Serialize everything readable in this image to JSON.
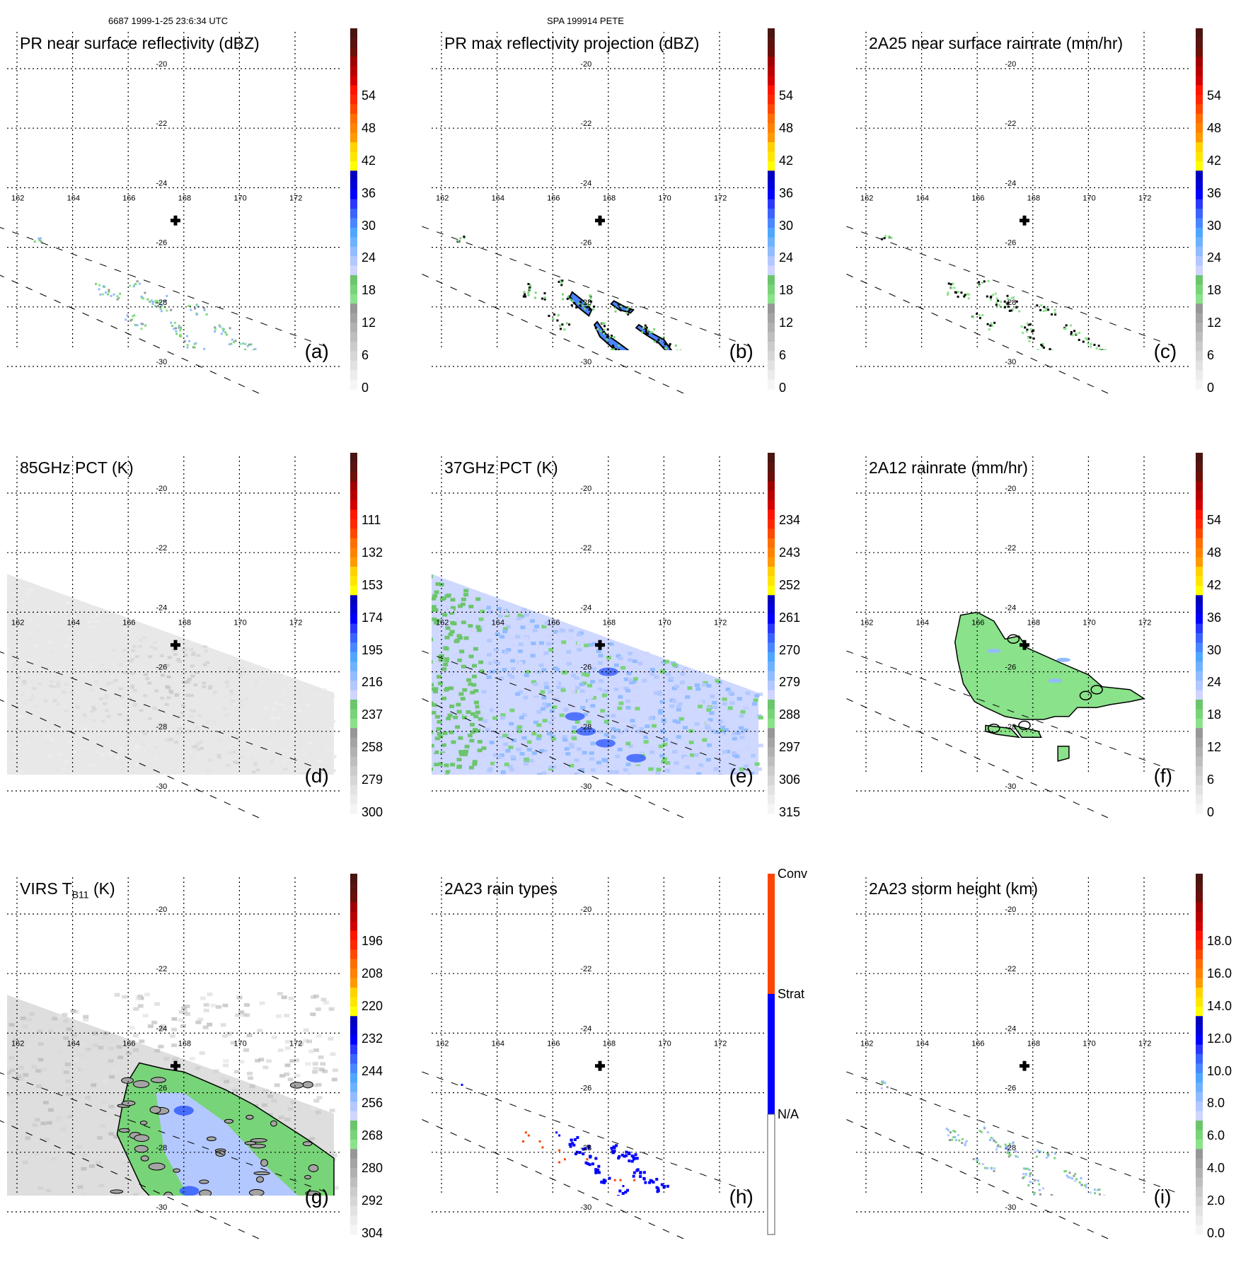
{
  "header": {
    "left": "6687 1999-1-25 23:6:34 UTC",
    "right": "SPA 199914 PETE"
  },
  "grid": {
    "lon_ticks": [
      162,
      164,
      166,
      168,
      170,
      172
    ],
    "lat_ticks": [
      -20,
      -22,
      -24,
      -26,
      -28,
      -30
    ],
    "lon_labels": [
      "162",
      "164",
      "166",
      "168",
      "170",
      "172"
    ],
    "lat_labels": [
      "-20",
      "-22",
      "-24",
      "-26",
      "-28",
      "-30"
    ],
    "lon_range": [
      161.4,
      173.4
    ],
    "lat_range": [
      -18.7,
      -31.0
    ],
    "storm_center": {
      "lon": 167.7,
      "lat": -25.1,
      "marker": "plus-cross"
    },
    "pr_swath_edges": [
      [
        [
          161.3,
          -25.3
        ],
        [
          173.3,
          -29.4
        ]
      ],
      [
        [
          161.3,
          -26.9
        ],
        [
          170.7,
          -30.9
        ]
      ]
    ],
    "tmi_swath_top_edge": [
      [
        161.3,
        -22.6
      ],
      [
        173.4,
        -26.7
      ]
    ]
  },
  "palette": {
    "standard": [
      "#f5f5f5",
      "#ececec",
      "#e2e2e2",
      "#d6d6d6",
      "#cbcbcb",
      "#bebebe",
      "#b1b1b1",
      "#a4a4a4",
      "#979797",
      "#8ae28a",
      "#78d478",
      "#6cc56c",
      "#cfd5ff",
      "#b3c8ff",
      "#92bcff",
      "#6eb2ff",
      "#4fa6ff",
      "#4a86ff",
      "#3b63ff",
      "#2a38ff",
      "#0000ff",
      "#0000d8",
      "#0000c0",
      "#ffff00",
      "#ffe600",
      "#ffd200",
      "#ff9a00",
      "#ff8200",
      "#ff6e00",
      "#ff4800",
      "#ff2800",
      "#ff1400",
      "#d20000",
      "#b80000",
      "#a00000",
      "#6a0f0a",
      "#5a1410",
      "#4a1410"
    ],
    "rain_types": {
      "conv": "#ff4500",
      "strat": "#0000ff",
      "na": "#ffffff"
    }
  },
  "panels": [
    {
      "id": "a",
      "label": "(a)",
      "title": "PR near surface reflectivity (dBZ)",
      "colorbar": {
        "type": "continuous",
        "ticks": [
          "0",
          "6",
          "12",
          "18",
          "24",
          "30",
          "36",
          "42",
          "48",
          "54"
        ],
        "min": 0,
        "max": 60,
        "bands": {
          "gray": [
            0,
            15
          ],
          "green": [
            15,
            20
          ],
          "blue": [
            20,
            35
          ],
          "warm": [
            35,
            60
          ]
        }
      },
      "field": "pr-sparse-echoes"
    },
    {
      "id": "b",
      "label": "(b)",
      "title": "PR max reflectivity projection (dBZ)",
      "colorbar": {
        "type": "continuous",
        "ticks": [
          "0",
          "6",
          "12",
          "18",
          "24",
          "30",
          "36",
          "42",
          "48",
          "54"
        ],
        "min": 0,
        "max": 60,
        "bands": {
          "gray": [
            0,
            15
          ],
          "green": [
            15,
            20
          ],
          "blue": [
            20,
            35
          ],
          "warm": [
            35,
            60
          ]
        }
      },
      "field": "pr-max-bands"
    },
    {
      "id": "c",
      "label": "(c)",
      "title": "2A25 near surface rainrate (mm/hr)",
      "colorbar": {
        "type": "continuous",
        "ticks": [
          "0",
          "6",
          "12",
          "18",
          "24",
          "30",
          "36",
          "42",
          "48",
          "54"
        ],
        "min": 0,
        "max": 60,
        "bands": {
          "green": [
            0,
            8
          ],
          "blue": [
            8,
            28
          ],
          "warm": [
            28,
            60
          ]
        }
      },
      "field": "2a25-rain"
    },
    {
      "id": "d",
      "label": "(d)",
      "title": "85GHz PCT (K)",
      "colorbar": {
        "type": "continuous",
        "ticks": [
          "300",
          "279",
          "258",
          "237",
          "216",
          "195",
          "174",
          "153",
          "132",
          "111"
        ],
        "min": 300,
        "max": 90,
        "bands": {
          "gray": [
            300,
            245
          ],
          "green": [
            245,
            227
          ],
          "blue": [
            227,
            173
          ],
          "warm": [
            173,
            90
          ]
        }
      },
      "field": "tmi-85-gray"
    },
    {
      "id": "e",
      "label": "(e)",
      "title": "37GHz PCT (K)",
      "colorbar": {
        "type": "continuous",
        "ticks": [
          "315",
          "306",
          "297",
          "288",
          "279",
          "270",
          "261",
          "252",
          "243",
          "234"
        ],
        "min": 315,
        "max": 225,
        "bands": {
          "gray": [
            315,
            291
          ],
          "green": [
            291,
            283
          ],
          "blue": [
            283,
            261
          ],
          "warm": [
            261,
            225
          ]
        }
      },
      "field": "tmi-37"
    },
    {
      "id": "f",
      "label": "(f)",
      "title": "2A12 rainrate (mm/hr)",
      "colorbar": {
        "type": "continuous",
        "ticks": [
          "0",
          "6",
          "12",
          "18",
          "24",
          "30",
          "36",
          "42",
          "48",
          "54"
        ],
        "min": 0,
        "max": 60,
        "bands": {
          "green": [
            0,
            8
          ],
          "blue": [
            8,
            28
          ],
          "warm": [
            28,
            60
          ]
        }
      },
      "field": "2a12-rain"
    },
    {
      "id": "g",
      "label": "(g)",
      "title_main": "VIRS T",
      "title_sub": "B11",
      "title_tail": " (K)",
      "colorbar": {
        "type": "continuous",
        "ticks": [
          "304",
          "292",
          "280",
          "268",
          "256",
          "244",
          "232",
          "220",
          "208",
          "196"
        ],
        "min": 304,
        "max": 184,
        "bands": {
          "gray": [
            304,
            274
          ],
          "green": [
            274,
            262
          ],
          "blue": [
            262,
            232
          ],
          "warm": [
            232,
            184
          ]
        }
      },
      "field": "virs-ir"
    },
    {
      "id": "h",
      "label": "(h)",
      "title": "2A23 rain types",
      "colorbar": {
        "type": "categorical",
        "categories": [
          "N/A",
          "Strat",
          "Conv"
        ]
      },
      "field": "2a23-types"
    },
    {
      "id": "i",
      "label": "(i)",
      "title": "2A23 storm height (km)",
      "colorbar": {
        "type": "continuous",
        "ticks": [
          "0.0",
          "2.0",
          "4.0",
          "6.0",
          "8.0",
          "10.0",
          "12.0",
          "14.0",
          "16.0",
          "18.0"
        ],
        "min": 0,
        "max": 20,
        "bands": {
          "gray": [
            0,
            5
          ],
          "green": [
            5,
            6.7
          ],
          "blue": [
            6.7,
            11.7
          ],
          "warm": [
            11.7,
            20
          ]
        }
      },
      "field": "2a23-height"
    }
  ],
  "features": {
    "rain_bands": [
      {
        "name": "band-west",
        "pts": [
          [
            166.7,
            -27.5
          ],
          [
            167.1,
            -27.8
          ],
          [
            167.4,
            -28.1
          ],
          [
            167.3,
            -28.3
          ],
          [
            166.9,
            -28.0
          ],
          [
            166.6,
            -27.7
          ]
        ]
      },
      {
        "name": "band-south",
        "pts": [
          [
            167.6,
            -28.5
          ],
          [
            167.9,
            -28.9
          ],
          [
            168.5,
            -29.3
          ],
          [
            169.2,
            -29.8
          ],
          [
            169.0,
            -29.9
          ],
          [
            168.3,
            -29.5
          ],
          [
            167.7,
            -29.0
          ],
          [
            167.5,
            -28.6
          ]
        ]
      },
      {
        "name": "band-east",
        "pts": [
          [
            169.1,
            -28.6
          ],
          [
            169.6,
            -28.9
          ],
          [
            170.0,
            -29.1
          ],
          [
            170.3,
            -29.5
          ],
          [
            170.2,
            -29.6
          ],
          [
            169.8,
            -29.2
          ],
          [
            169.3,
            -28.9
          ],
          [
            169.0,
            -28.7
          ]
        ]
      },
      {
        "name": "band-mid",
        "pts": [
          [
            168.2,
            -27.8
          ],
          [
            168.6,
            -28.0
          ],
          [
            168.9,
            -28.1
          ],
          [
            168.8,
            -28.2
          ],
          [
            168.4,
            -28.1
          ],
          [
            168.1,
            -27.9
          ]
        ]
      }
    ],
    "tmi_rain_area": [
      [
        165.4,
        -24.1
      ],
      [
        166.0,
        -24.0
      ],
      [
        166.6,
        -24.3
      ],
      [
        167.0,
        -24.9
      ],
      [
        167.5,
        -24.8
      ],
      [
        167.8,
        -25.2
      ],
      [
        169.0,
        -25.7
      ],
      [
        170.0,
        -26.1
      ],
      [
        170.5,
        -26.5
      ],
      [
        171.5,
        -26.6
      ],
      [
        172.0,
        -26.9
      ],
      [
        171.5,
        -27.0
      ],
      [
        170.8,
        -27.1
      ],
      [
        170.3,
        -27.2
      ],
      [
        169.6,
        -27.2
      ],
      [
        169.3,
        -27.5
      ],
      [
        168.8,
        -27.5
      ],
      [
        168.4,
        -27.6
      ],
      [
        167.6,
        -27.6
      ],
      [
        167.0,
        -27.5
      ],
      [
        166.3,
        -27.2
      ],
      [
        165.9,
        -27.0
      ],
      [
        165.5,
        -26.4
      ],
      [
        165.3,
        -25.6
      ],
      [
        165.2,
        -25.0
      ]
    ],
    "tmi_rain_small": [
      [
        [
          166.3,
          -27.8
        ],
        [
          167.2,
          -27.9
        ],
        [
          167.5,
          -28.2
        ],
        [
          166.7,
          -28.1
        ],
        [
          166.3,
          -28.0
        ]
      ],
      [
        [
          167.3,
          -27.8
        ],
        [
          168.2,
          -28.0
        ],
        [
          168.3,
          -28.2
        ],
        [
          167.6,
          -28.2
        ]
      ],
      [
        [
          168.9,
          -28.5
        ],
        [
          169.3,
          -28.5
        ],
        [
          169.3,
          -28.9
        ],
        [
          168.9,
          -29.0
        ]
      ]
    ],
    "virs_cold_area": [
      [
        166.4,
        -25.0
      ],
      [
        167.3,
        -25.2
      ],
      [
        168.0,
        -25.3
      ],
      [
        169.5,
        -25.9
      ],
      [
        170.5,
        -26.4
      ],
      [
        171.5,
        -27.0
      ],
      [
        172.5,
        -27.6
      ],
      [
        173.4,
        -28.2
      ],
      [
        173.4,
        -30.8
      ],
      [
        171.0,
        -31.3
      ],
      [
        169.5,
        -31.3
      ],
      [
        168.5,
        -31.0
      ],
      [
        167.5,
        -30.2
      ],
      [
        166.5,
        -29.2
      ],
      [
        166.0,
        -28.2
      ],
      [
        165.6,
        -27.4
      ],
      [
        165.8,
        -26.4
      ],
      [
        166.0,
        -25.6
      ]
    ],
    "virs_colder_core": [
      [
        167.0,
        -26.0
      ],
      [
        168.0,
        -26.0
      ],
      [
        169.5,
        -27.0
      ],
      [
        171.0,
        -28.5
      ],
      [
        172.5,
        -29.8
      ],
      [
        171.5,
        -30.8
      ],
      [
        169.8,
        -31.2
      ],
      [
        168.8,
        -30.2
      ],
      [
        168.0,
        -29.2
      ],
      [
        167.3,
        -28.0
      ]
    ],
    "virs_coldest_spots": [
      [
        168.2,
        -29.3
      ],
      [
        168.8,
        -29.8
      ],
      [
        169.4,
        -30.3
      ],
      [
        168.0,
        -26.6
      ],
      [
        171.0,
        -30.7
      ],
      [
        170.2,
        -31.0
      ]
    ],
    "tmi37_cold_spots": [
      [
        168.0,
        -26.0
      ],
      [
        167.2,
        -28.0
      ],
      [
        167.9,
        -28.4
      ],
      [
        169.0,
        -28.9
      ],
      [
        166.8,
        -27.5
      ]
    ],
    "echo_points": [
      [
        165.0,
        -27.3
      ],
      [
        165.5,
        -27.6
      ],
      [
        165.1,
        -27.5
      ],
      [
        166.2,
        -27.2
      ],
      [
        166.5,
        -27.6
      ],
      [
        166.8,
        -27.8
      ],
      [
        167.0,
        -27.9
      ],
      [
        167.3,
        -28.0
      ],
      [
        167.2,
        -27.7
      ],
      [
        167.7,
        -28.6
      ],
      [
        167.8,
        -28.8
      ],
      [
        168.0,
        -29.0
      ],
      [
        168.2,
        -29.3
      ],
      [
        168.5,
        -29.5
      ],
      [
        168.8,
        -29.8
      ],
      [
        169.1,
        -29.9
      ],
      [
        168.3,
        -28.0
      ],
      [
        168.6,
        -28.1
      ],
      [
        169.2,
        -28.7
      ],
      [
        169.5,
        -28.8
      ],
      [
        169.8,
        -29.1
      ],
      [
        170.2,
        -29.3
      ],
      [
        170.4,
        -29.5
      ],
      [
        171.8,
        -29.6
      ],
      [
        172.4,
        -29.8
      ],
      [
        172.6,
        -30.0
      ],
      [
        169.6,
        -30.4
      ],
      [
        166.0,
        -28.3
      ],
      [
        166.4,
        -28.6
      ],
      [
        162.7,
        -25.7
      ]
    ],
    "conv_points": [
      [
        165.0,
        -27.3
      ],
      [
        165.1,
        -27.4
      ],
      [
        164.9,
        -27.6
      ],
      [
        165.5,
        -27.6
      ],
      [
        165.6,
        -27.8
      ],
      [
        166.2,
        -27.9
      ],
      [
        166.4,
        -28.2
      ],
      [
        166.2,
        -28.3
      ],
      [
        167.2,
        -28.2
      ],
      [
        168.2,
        -28.9
      ],
      [
        168.4,
        -28.9
      ],
      [
        168.9,
        -28.9
      ],
      [
        169.9,
        -29.9
      ],
      [
        170.0,
        -29.9
      ],
      [
        170.8,
        -29.7
      ]
    ],
    "strat_points": [
      [
        162.7,
        -25.7
      ],
      [
        166.1,
        -27.3
      ],
      [
        166.2,
        -27.4
      ],
      [
        172.3,
        -29.5
      ],
      [
        172.5,
        -29.8
      ],
      [
        169.0,
        -30.0
      ],
      [
        168.5,
        -29.1
      ]
    ]
  }
}
